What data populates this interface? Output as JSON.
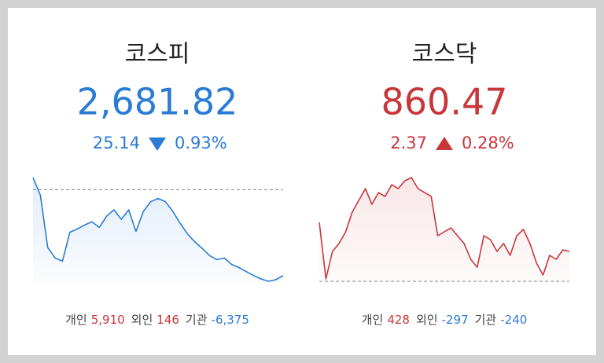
{
  "panels": [
    {
      "name": "코스피",
      "value": "2,681.82",
      "change": "25.14",
      "direction": "down",
      "change_pct": "0.93%",
      "color": "#2a7bd4",
      "chart_data": {
        "type": "line",
        "reference_line": 2706.96,
        "values": [
          2710.49,
          2705.31,
          2690.04,
          2686.98,
          2686.04,
          2694.5,
          2695.44,
          2696.62,
          2697.56,
          2695.91,
          2699.2,
          2701.08,
          2698.26,
          2701.08,
          2694.74,
          2700.61,
          2703.43,
          2704.37,
          2703.43,
          2700.61,
          2697.09,
          2694.03,
          2691.68,
          2689.8,
          2687.69,
          2686.51,
          2686.98,
          2685.1,
          2684.16,
          2682.99,
          2681.82,
          2680.87,
          2680.17,
          2680.64,
          2681.82
        ]
      },
      "investors": [
        {
          "label": "개인",
          "value": "5,910",
          "color": "#c9363a"
        },
        {
          "label": "외인",
          "value": "146",
          "color": "#c9363a"
        },
        {
          "label": "기관",
          "value": "-6,375",
          "color": "#2a7bd4"
        }
      ]
    },
    {
      "name": "코스닥",
      "value": "860.47",
      "change": "2.37",
      "direction": "up",
      "change_pct": "0.28%",
      "color": "#c9363a",
      "chart_data": {
        "type": "line",
        "reference_line": 858.1,
        "values": [
          862.78,
          858.29,
          860.47,
          861.1,
          862.03,
          863.59,
          864.53,
          865.46,
          864.22,
          865.15,
          864.84,
          865.78,
          865.46,
          866.09,
          866.34,
          865.46,
          865.15,
          864.84,
          861.72,
          862.03,
          862.34,
          861.72,
          861.1,
          859.85,
          859.22,
          861.72,
          861.41,
          860.47,
          861.1,
          860.16,
          861.72,
          862.22,
          861.1,
          859.54,
          858.6,
          860.16,
          859.85,
          860.6,
          860.47
        ]
      },
      "investors": [
        {
          "label": "개인",
          "value": "428",
          "color": "#c9363a"
        },
        {
          "label": "외인",
          "value": "-297",
          "color": "#2a7bd4"
        },
        {
          "label": "기관",
          "value": "-240",
          "color": "#2a7bd4"
        }
      ]
    }
  ]
}
